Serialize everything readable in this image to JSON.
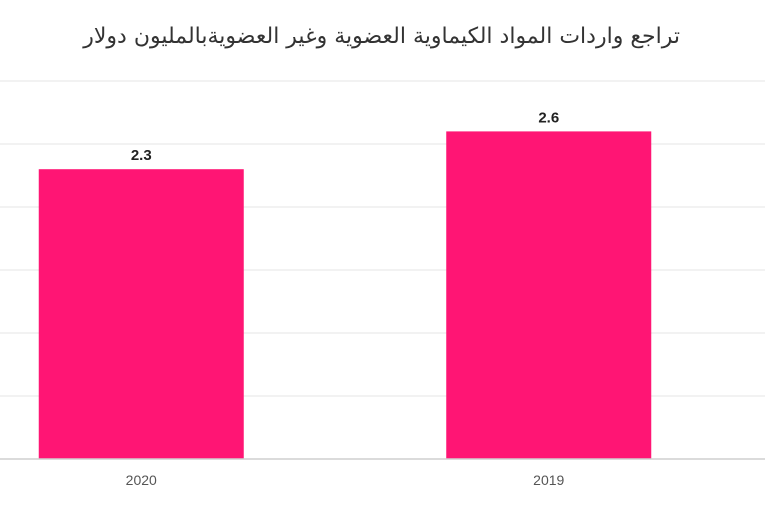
{
  "chart_data": {
    "type": "bar",
    "title": "تراجع واردات المواد الكيماوية العضوية وغير العضويةبالمليون دولار",
    "categories": [
      "2020",
      "2019"
    ],
    "values": [
      2.3,
      2.6
    ],
    "data_labels": [
      "2.3",
      "2.6"
    ],
    "xlabel": "",
    "ylabel": "",
    "ylim": [
      0,
      3.0
    ],
    "grid": true,
    "legend": "none",
    "bar_color": "#FF1574"
  }
}
